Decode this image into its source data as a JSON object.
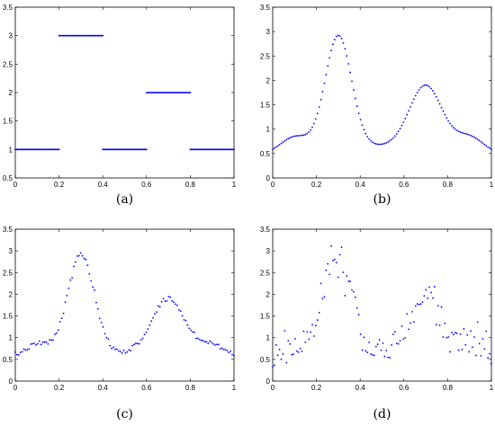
{
  "colors": {
    "marker": "#0000ff",
    "axis": "#000000",
    "background": "#ffffff"
  },
  "chart_data": [
    {
      "type": "scatter",
      "label": "(a)",
      "xlim": [
        0,
        1
      ],
      "ylim": [
        0.5,
        3.5
      ],
      "xticks": [
        "0",
        "0.2",
        "0.4",
        "0.6",
        "0.8",
        "1"
      ],
      "yticks": [
        "0.5",
        "1",
        "1.5",
        "2",
        "2.5",
        "3",
        "3.5"
      ],
      "grid": false,
      "series": [
        {
          "generator": "piecewise",
          "n": 201,
          "noise": 0,
          "segments": [
            {
              "x0": 0.0,
              "x1": 0.2,
              "y": 1
            },
            {
              "x0": 0.2,
              "x1": 0.4,
              "y": 3
            },
            {
              "x0": 0.4,
              "x1": 0.6,
              "y": 1
            },
            {
              "x0": 0.6,
              "x1": 0.8,
              "y": 2
            },
            {
              "x0": 0.8,
              "x1": 1.0,
              "y": 1
            }
          ]
        }
      ]
    },
    {
      "type": "scatter",
      "label": "(b)",
      "xlim": [
        0,
        1
      ],
      "ylim": [
        0,
        3.5
      ],
      "xticks": [
        "0",
        "0.2",
        "0.4",
        "0.6",
        "0.8",
        "1"
      ],
      "yticks": [
        "0",
        "0.5",
        "1",
        "1.5",
        "2",
        "2.5",
        "3",
        "3.5"
      ],
      "grid": false,
      "series": [
        {
          "generator": "smooth",
          "n": 128,
          "noise": 0
        }
      ]
    },
    {
      "type": "scatter",
      "label": "(c)",
      "xlim": [
        0,
        1
      ],
      "ylim": [
        0,
        3.5
      ],
      "xticks": [
        "0",
        "0.2",
        "0.4",
        "0.6",
        "0.8",
        "1"
      ],
      "yticks": [
        "0",
        "0.5",
        "1",
        "1.5",
        "2",
        "2.5",
        "3",
        "3.5"
      ],
      "grid": false,
      "series": [
        {
          "generator": "smooth",
          "n": 128,
          "noise": 0.025,
          "seed": 7
        }
      ]
    },
    {
      "type": "scatter",
      "label": "(d)",
      "xlim": [
        0,
        1
      ],
      "ylim": [
        0,
        3.5
      ],
      "xticks": [
        "0",
        "0.2",
        "0.4",
        "0.6",
        "0.8",
        "1"
      ],
      "yticks": [
        "0",
        "0.5",
        "1",
        "1.5",
        "2",
        "2.5",
        "3",
        "3.5"
      ],
      "grid": false,
      "series": [
        {
          "generator": "smooth",
          "n": 128,
          "noise": 0.18,
          "seed": 21
        }
      ]
    }
  ]
}
